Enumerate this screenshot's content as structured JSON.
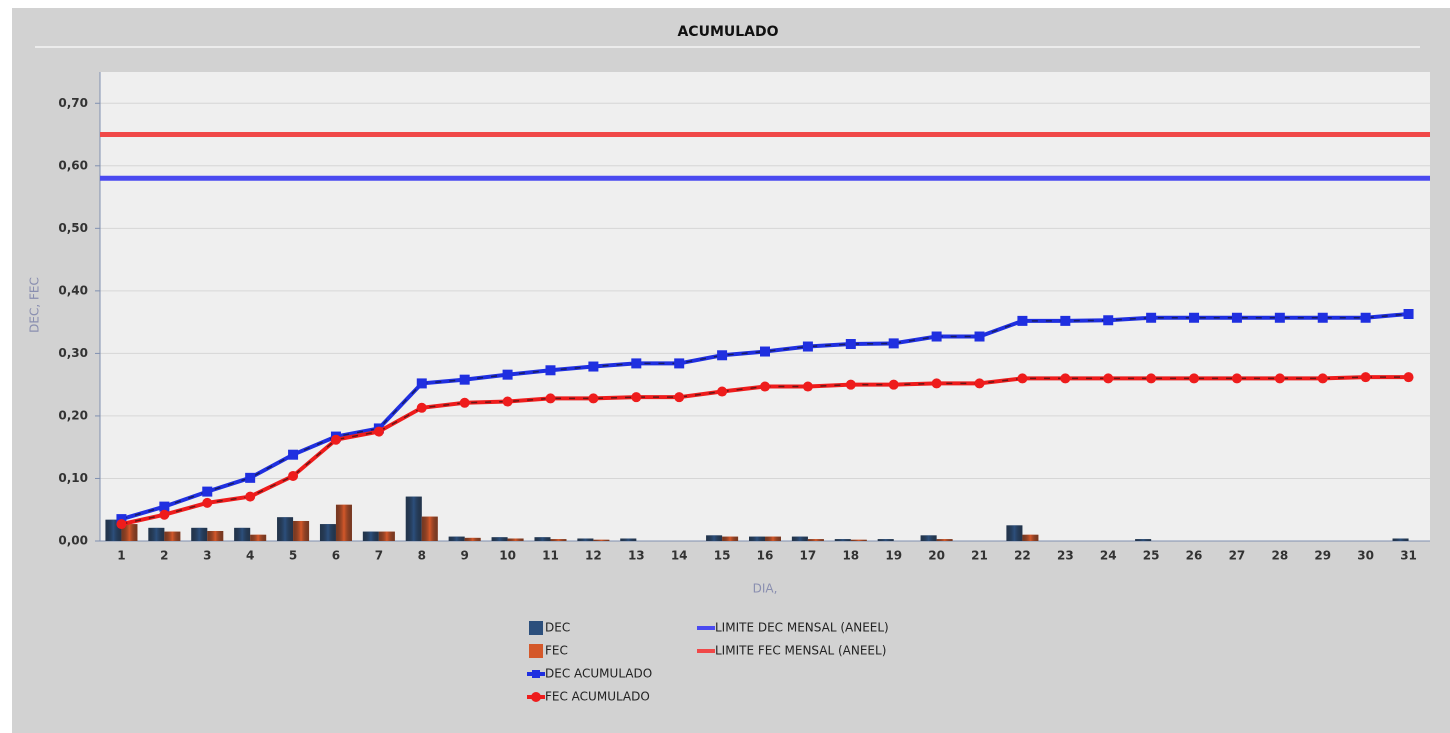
{
  "chart_data": {
    "type": "combo",
    "title": "ACUMULADO",
    "y_label": "DEC, FEC",
    "x_label": "DIA,",
    "categories": [
      "1",
      "2",
      "3",
      "4",
      "5",
      "6",
      "7",
      "8",
      "9",
      "10",
      "11",
      "12",
      "13",
      "14",
      "15",
      "16",
      "17",
      "18",
      "19",
      "20",
      "21",
      "22",
      "23",
      "24",
      "25",
      "26",
      "27",
      "28",
      "29",
      "30",
      "31"
    ],
    "ylim": [
      0,
      0.75
    ],
    "yticks": [
      {
        "value": 0,
        "label": "0,00"
      },
      {
        "value": 0.1,
        "label": "0,10"
      },
      {
        "value": 0.2,
        "label": "0,20"
      },
      {
        "value": 0.3,
        "label": "0,30"
      },
      {
        "value": 0.4,
        "label": "0,40"
      },
      {
        "value": 0.5,
        "label": "0,50"
      },
      {
        "value": 0.6,
        "label": "0,60"
      },
      {
        "value": 0.7,
        "label": "0,70"
      }
    ],
    "grid": true,
    "series": [
      {
        "name": "DEC",
        "type": "bar",
        "color": "#2c4f7c",
        "values": [
          0.034,
          0.021,
          0.021,
          0.021,
          0.038,
          0.027,
          0.015,
          0.071,
          0.007,
          0.006,
          0.006,
          0.004,
          0.004,
          0,
          0.009,
          0.007,
          0.007,
          0.003,
          0.003,
          0.009,
          0,
          0.025,
          0,
          0,
          0.003,
          0,
          0,
          0,
          0,
          0,
          0.004
        ]
      },
      {
        "name": "FEC",
        "type": "bar",
        "color": "#d4582a",
        "values": [
          0.027,
          0.015,
          0.016,
          0.01,
          0.032,
          0.058,
          0.015,
          0.039,
          0.005,
          0.004,
          0.003,
          0.002,
          0,
          0,
          0.007,
          0.007,
          0.003,
          0.002,
          0,
          0.003,
          0,
          0.01,
          0,
          0,
          0,
          0,
          0,
          0,
          0,
          0,
          0
        ]
      },
      {
        "name": "DEC ACUMULADO",
        "type": "line",
        "marker": "square",
        "color": "#1f2fe0",
        "values": [
          0.035,
          0.055,
          0.079,
          0.101,
          0.138,
          0.167,
          0.18,
          0.252,
          0.258,
          0.266,
          0.273,
          0.279,
          0.284,
          0.284,
          0.297,
          0.303,
          0.311,
          0.315,
          0.316,
          0.327,
          0.327,
          0.352,
          0.352,
          0.353,
          0.357,
          0.357,
          0.357,
          0.357,
          0.357,
          0.357,
          0.363
        ]
      },
      {
        "name": "FEC ACUMULADO",
        "type": "line",
        "marker": "circle",
        "color": "#ee1c1c",
        "values": [
          0.027,
          0.042,
          0.061,
          0.071,
          0.104,
          0.162,
          0.175,
          0.213,
          0.221,
          0.223,
          0.228,
          0.228,
          0.23,
          0.23,
          0.239,
          0.247,
          0.247,
          0.25,
          0.25,
          0.252,
          0.252,
          0.26,
          0.26,
          0.26,
          0.26,
          0.26,
          0.26,
          0.26,
          0.26,
          0.262,
          0.262
        ]
      },
      {
        "name": "LIMITE DEC MENSAL (ANEEL)",
        "type": "hline",
        "color": "#4a4af0",
        "value": 0.58
      },
      {
        "name": "LIMITE FEC MENSAL (ANEEL)",
        "type": "hline",
        "color": "#f04848",
        "value": 0.65
      }
    ]
  }
}
